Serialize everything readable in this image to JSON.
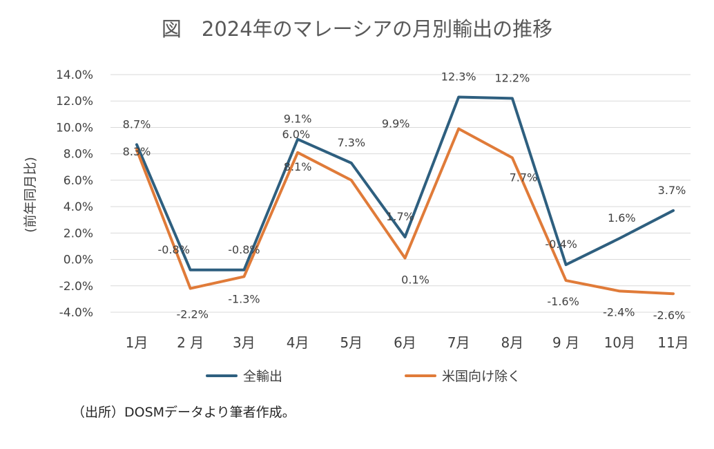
{
  "chart_data": {
    "type": "line",
    "title": "図　2024年のマレーシアの月別輸出の推移",
    "ylabel": "(前年同月比)",
    "xlabel": "",
    "ylim": [
      -4.0,
      14.0
    ],
    "yticks": [
      "14.0%",
      "12.0%",
      "10.0%",
      "8.0%",
      "6.0%",
      "4.0%",
      "2.0%",
      "0.0%",
      "-2.0%",
      "-4.0%"
    ],
    "ytick_values": [
      14,
      12,
      10,
      8,
      6,
      4,
      2,
      0,
      -2,
      -4
    ],
    "categories": [
      "1月",
      "2 月",
      "3月",
      "4月",
      "5月",
      "6月",
      "7月",
      "8月",
      "9 月",
      "10月",
      "11月"
    ],
    "grid": true,
    "legend_position": "bottom",
    "series": [
      {
        "name": "全輸出",
        "color": "#2e5f7f",
        "values": [
          8.7,
          -0.8,
          -0.8,
          9.1,
          7.3,
          1.7,
          12.3,
          12.2,
          -0.4,
          1.6,
          3.7
        ],
        "labels": [
          "8.7%",
          "-0.8%",
          "-0.8%",
          "9.1%",
          "7.3%",
          "1.7%",
          "12.3%",
          "12.2%",
          "-0.4%",
          "1.6%",
          "3.7%"
        ]
      },
      {
        "name": "米国向け除く",
        "color": "#e07b39",
        "values": [
          8.3,
          -2.2,
          -1.3,
          8.1,
          6.0,
          0.1,
          9.9,
          7.7,
          -1.6,
          -2.4,
          -2.6
        ],
        "labels": [
          "8.3%",
          "-2.2%",
          "-1.3%",
          "8.1%",
          "6.0%",
          "0.1%",
          "9.9%",
          "7.7%",
          "-1.6%",
          "-2.4%",
          "-2.6%"
        ]
      }
    ],
    "source": "（出所）DOSMデータより筆者作成。"
  }
}
